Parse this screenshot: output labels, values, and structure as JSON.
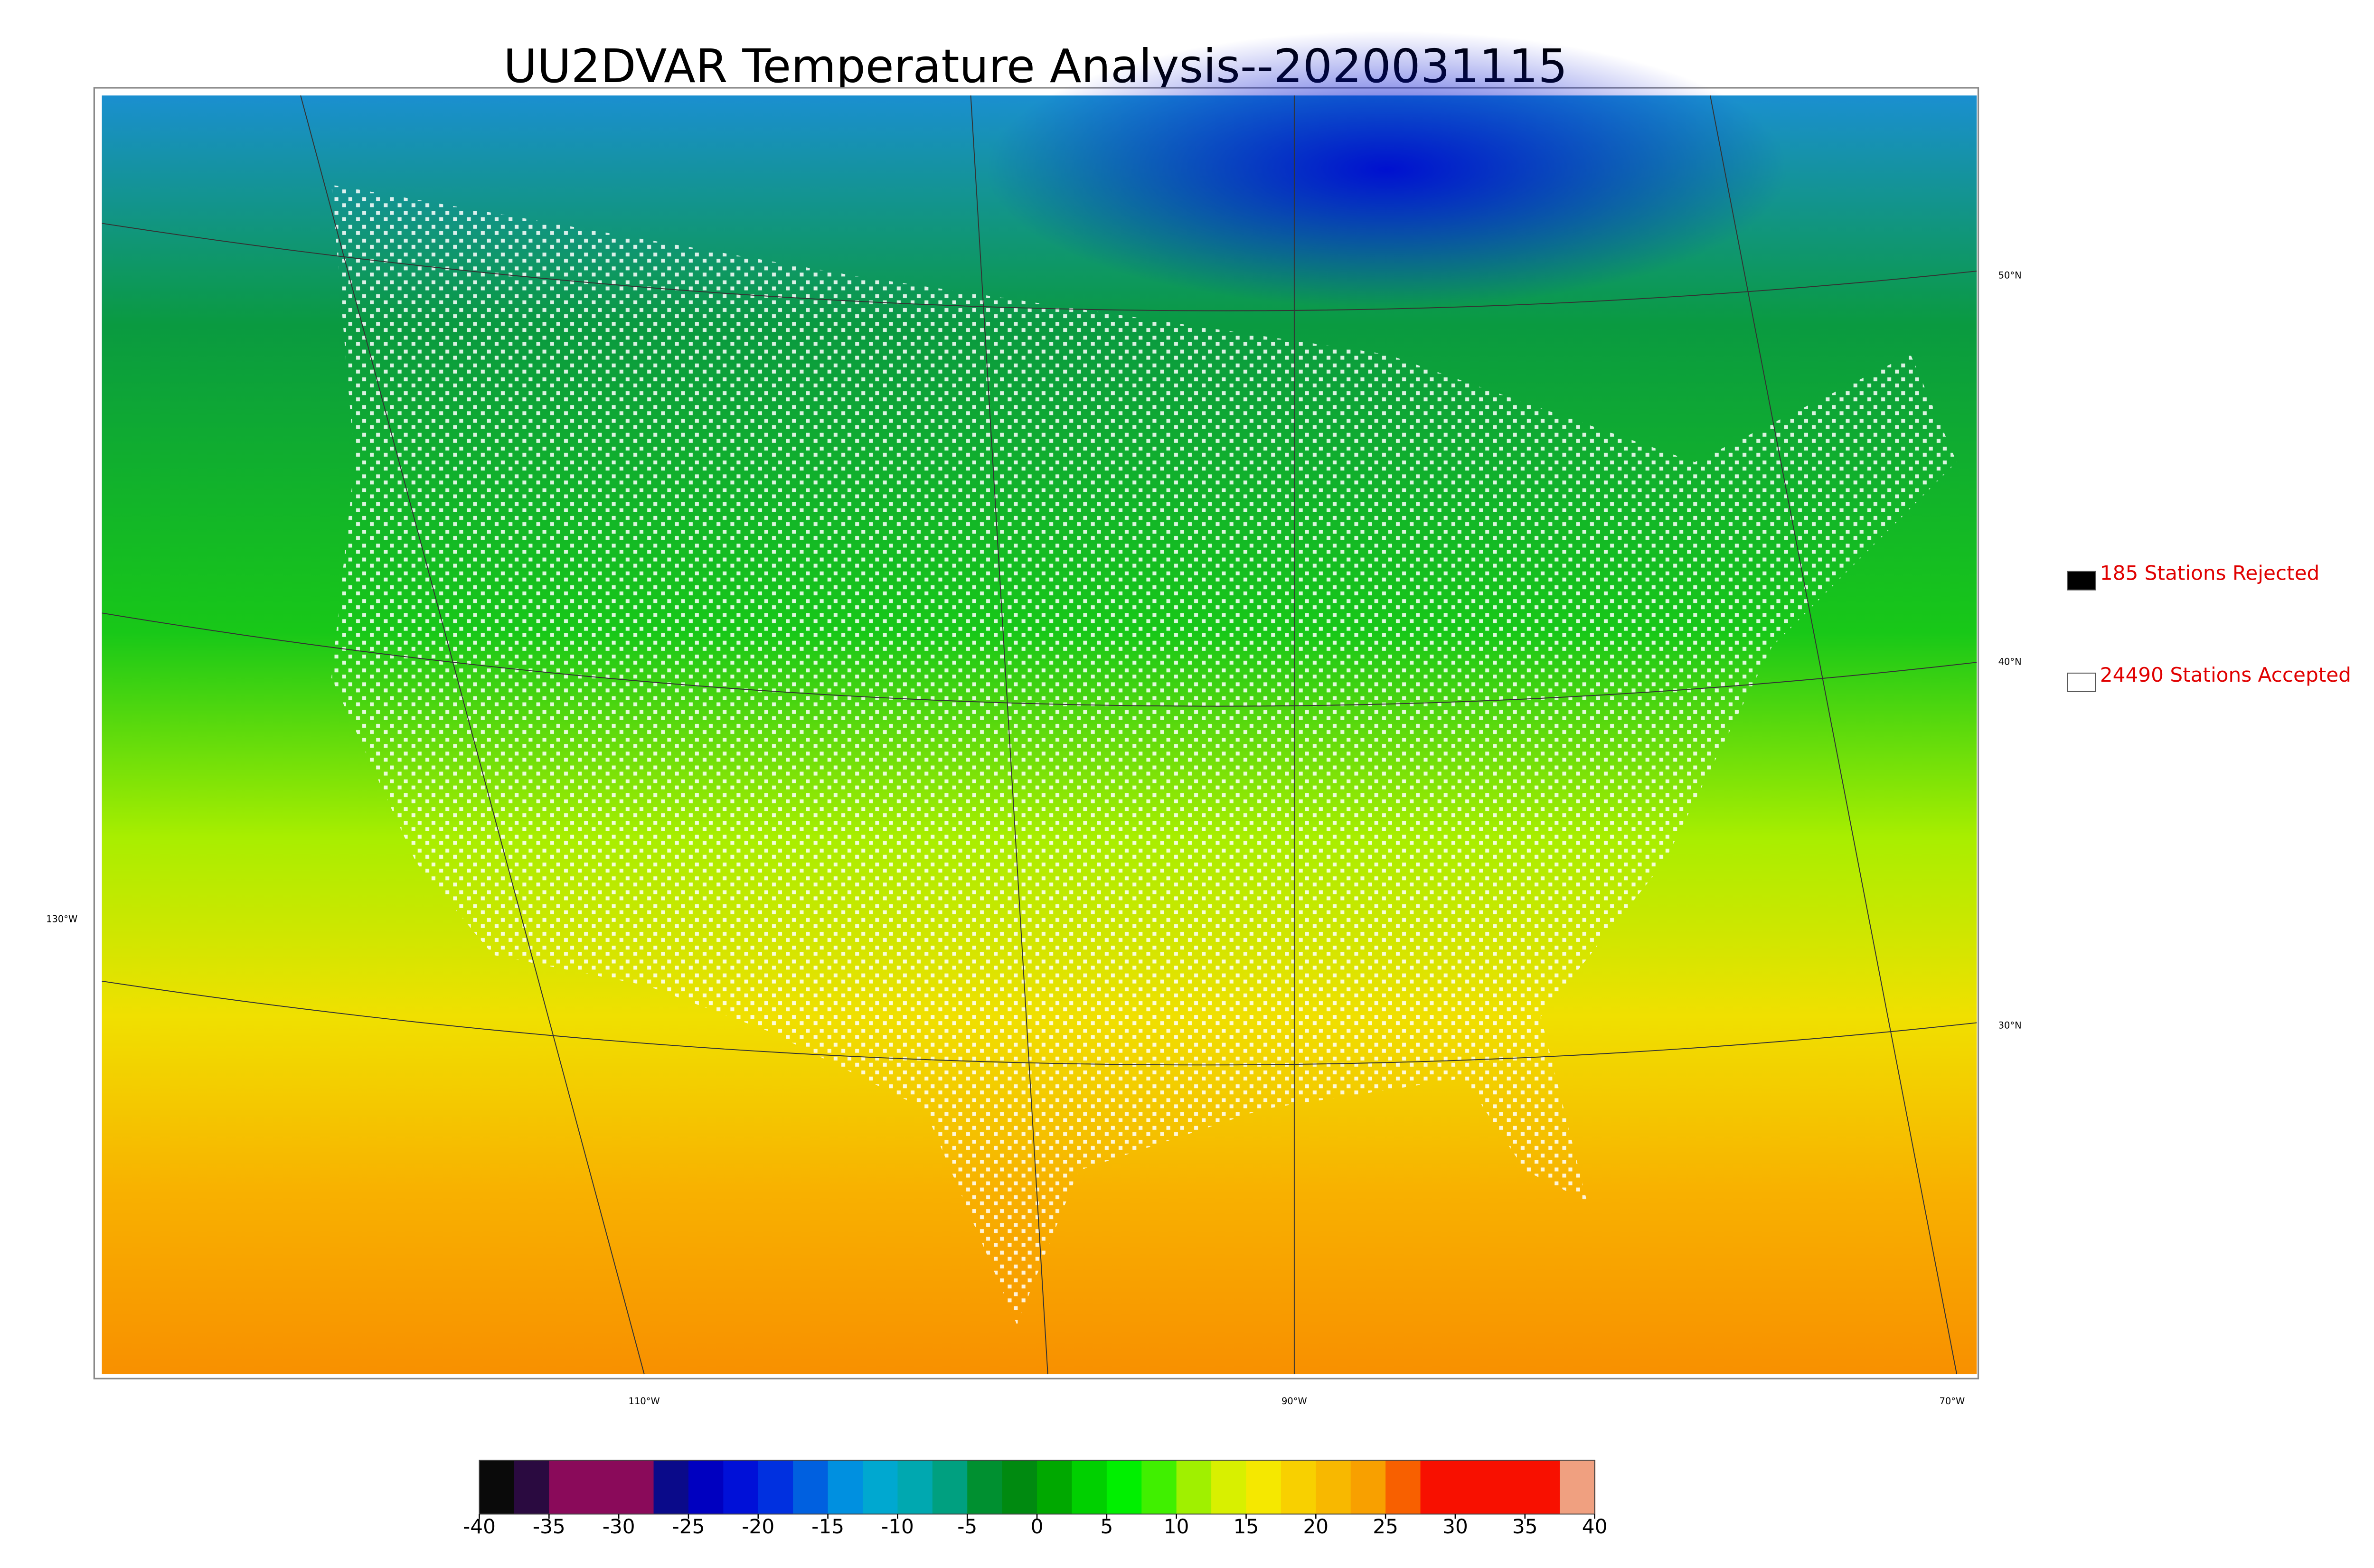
{
  "title": "UU2DVAR Temperature Analysis--2020031115",
  "legend": [
    {
      "label": "185 Stations Rejected",
      "color": "#000000"
    },
    {
      "label": "24490 Stations Accepted",
      "color": "#ffffff"
    }
  ],
  "lat_labels": [
    "50°N",
    "40°N",
    "30°N"
  ],
  "lon_labels": [
    "130°W",
    "110°W",
    "90°W",
    "70°W"
  ],
  "colorbar": {
    "lim": [
      -40,
      40
    ],
    "ticks": [
      -40,
      -35,
      -30,
      -25,
      -20,
      -15,
      -10,
      -5,
      0,
      5,
      10,
      15,
      20,
      25,
      30,
      35,
      40
    ],
    "colors": [
      "#0a0a0a",
      "#2a0a40",
      "#8a0a5a",
      "#8a0a5a",
      "#8a0a5a",
      "#0a0a8a",
      "#0000c0",
      "#0010d8",
      "#0030e0",
      "#0060e0",
      "#0090e0",
      "#00a8d0",
      "#00a8b0",
      "#00a080",
      "#009030",
      "#008a10",
      "#00a800",
      "#00d000",
      "#00f000",
      "#40f000",
      "#a0f000",
      "#d8f000",
      "#f5e800",
      "#f8d000",
      "#f8b800",
      "#f8a000",
      "#f86000",
      "#f81000",
      "#f81000",
      "#f81000",
      "#f81000",
      "#f0a080"
    ]
  }
}
